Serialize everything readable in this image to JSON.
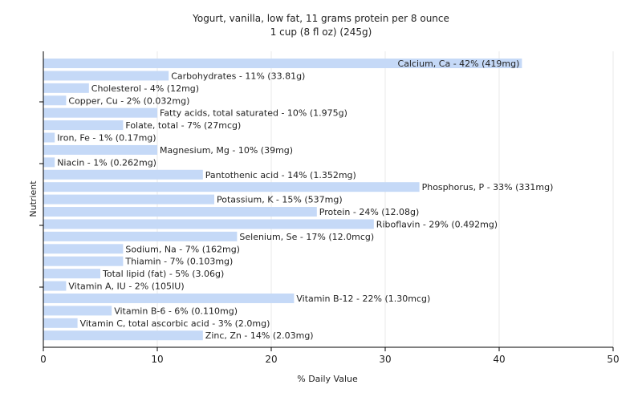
{
  "chart_data": {
    "type": "bar",
    "orientation": "horizontal",
    "title": "Yogurt, vanilla, low fat, 11 grams protein per 8 ounce",
    "subtitle": "1 cup (8 fl oz) (245g)",
    "xlabel": "% Daily Value",
    "ylabel": "Nutrient",
    "xlim": [
      0,
      50
    ],
    "xticks": [
      "0",
      "10",
      "20",
      "30",
      "40",
      "50"
    ],
    "grid": true,
    "bar_color": "#c5d9f7",
    "categories": [
      "Calcium, Ca",
      "Carbohydrates",
      "Cholesterol",
      "Copper, Cu",
      "Fatty acids, total saturated",
      "Folate, total",
      "Iron, Fe",
      "Magnesium, Mg",
      "Niacin",
      "Pantothenic acid",
      "Phosphorus, P",
      "Potassium, K",
      "Protein",
      "Riboflavin",
      "Selenium, Se",
      "Sodium, Na",
      "Thiamin",
      "Total lipid (fat)",
      "Vitamin A, IU",
      "Vitamin B-12",
      "Vitamin B-6",
      "Vitamin C, total ascorbic acid",
      "Zinc, Zn"
    ],
    "values": [
      42,
      11,
      4,
      2,
      10,
      7,
      1,
      10,
      1,
      14,
      33,
      15,
      24,
      29,
      17,
      7,
      7,
      5,
      2,
      22,
      6,
      3,
      14
    ],
    "labels": [
      "Calcium, Ca - 42% (419mg)",
      "Carbohydrates - 11% (33.81g)",
      "Cholesterol - 4% (12mg)",
      "Copper, Cu - 2% (0.032mg)",
      "Fatty acids, total saturated - 10% (1.975g)",
      "Folate, total - 7% (27mcg)",
      "Iron, Fe - 1% (0.17mg)",
      "Magnesium, Mg - 10% (39mg)",
      "Niacin - 1% (0.262mg)",
      "Pantothenic acid - 14% (1.352mg)",
      "Phosphorus, P - 33% (331mg)",
      "Potassium, K - 15% (537mg)",
      "Protein - 24% (12.08g)",
      "Riboflavin - 29% (0.492mg)",
      "Selenium, Se - 17% (12.0mcg)",
      "Sodium, Na - 7% (162mg)",
      "Thiamin - 7% (0.103mg)",
      "Total lipid (fat) - 5% (3.06g)",
      "Vitamin A, IU - 2% (105IU)",
      "Vitamin B-12 - 22% (1.30mcg)",
      "Vitamin B-6 - 6% (0.110mg)",
      "Vitamin C, total ascorbic acid - 3% (2.0mg)",
      "Zinc, Zn - 14% (2.03mg)"
    ]
  }
}
